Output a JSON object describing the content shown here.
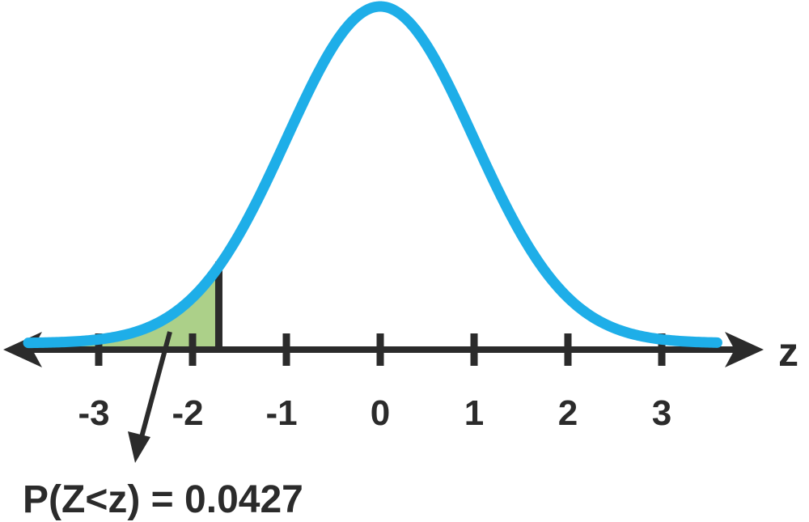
{
  "chart_data": {
    "type": "area",
    "distribution": "standard normal",
    "xlabel": "z",
    "x_ticks": [
      -3,
      -2,
      -1,
      0,
      1,
      2,
      3
    ],
    "x_tick_labels": [
      "-3",
      "-2",
      "-1",
      "0",
      "1",
      "2",
      "3"
    ],
    "xlim": [
      -3.8,
      3.6
    ],
    "shaded_region": {
      "from": -3.8,
      "to": -1.72,
      "side": "left"
    },
    "z_cutoff": -1.72,
    "probability": 0.0427,
    "annotation": "P(Z<z) = 0.0427",
    "colors": {
      "curve": "#1eaee8",
      "shade": "#acd089",
      "axis": "#2b2b2b",
      "text": "#2b2b2b"
    }
  }
}
